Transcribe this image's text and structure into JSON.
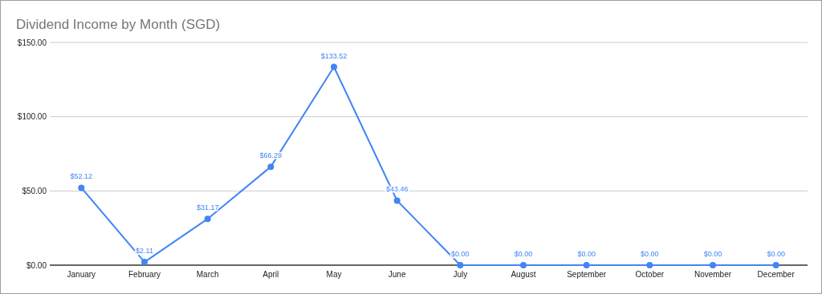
{
  "chart_data": {
    "type": "line",
    "title": "Dividend Income by Month (SGD)",
    "categories": [
      "January",
      "February",
      "March",
      "April",
      "May",
      "June",
      "July",
      "August",
      "September",
      "October",
      "November",
      "December"
    ],
    "series": [
      {
        "color": "#4285f4",
        "values": [
          52.12,
          2.11,
          31.17,
          66.29,
          133.52,
          43.46,
          0,
          0,
          0,
          0,
          0,
          0
        ],
        "value_labels": [
          "$52.12",
          "$2.11",
          "$31.17",
          "$66.29",
          "$133.52",
          "$43.46",
          "$0.00",
          "$0.00",
          "$0.00",
          "$0.00",
          "$0.00",
          "$0.00"
        ]
      }
    ],
    "ylim": [
      0,
      150
    ],
    "yticks": [
      {
        "value": 0,
        "label": "$0.00"
      },
      {
        "value": 50,
        "label": "$50.00"
      },
      {
        "value": 100,
        "label": "$100.00"
      },
      {
        "value": 150,
        "label": "$150.00"
      }
    ],
    "grid": "y",
    "marker": "circle",
    "line_style": "solid"
  }
}
